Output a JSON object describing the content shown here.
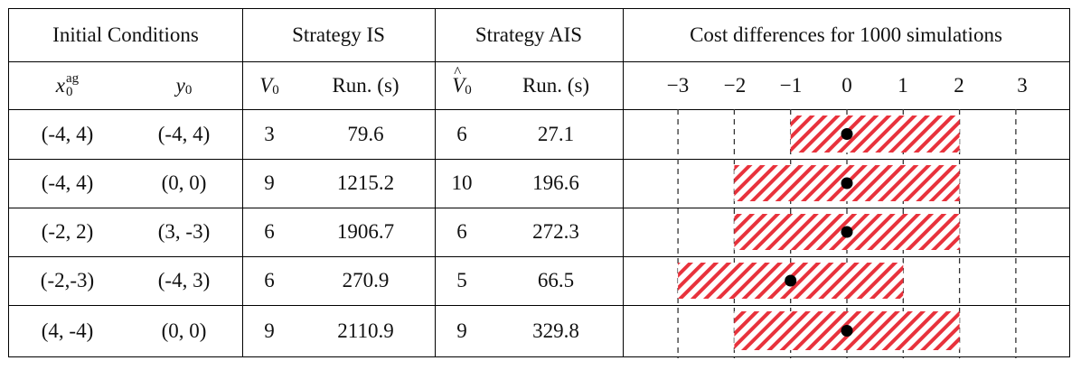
{
  "headers": {
    "group1": "Initial Conditions",
    "group2": "Strategy IS",
    "group3": "Strategy AIS",
    "group4": "Cost differences for 1000 simulations",
    "col_x": "x",
    "col_x_sub": "0",
    "col_x_sup": "ag",
    "col_y": "y",
    "col_y_sub": "0",
    "col_v": "V",
    "col_v_sub": "0",
    "col_run1": "Run. (s)",
    "col_vhat": "V",
    "col_vhat_sub": "0",
    "col_run2": "Run. (s)"
  },
  "axis_ticks": [
    "−3",
    "−2",
    "−1",
    "0",
    "1",
    "2",
    "3"
  ],
  "rows": [
    {
      "x0": "(-4, 4)",
      "y0": "(-4, 4)",
      "v0": "3",
      "run_is": "79.6",
      "vhat0": "6",
      "run_ais": "27.1"
    },
    {
      "x0": "(-4, 4)",
      "y0": "(0,  0)",
      "v0": "9",
      "run_is": "1215.2",
      "vhat0": "10",
      "run_ais": "196.6"
    },
    {
      "x0": "(-2, 2)",
      "y0": "(3, -3)",
      "v0": "6",
      "run_is": "1906.7",
      "vhat0": "6",
      "run_ais": "272.3"
    },
    {
      "x0": "(-2,-3)",
      "y0": "(-4, 3)",
      "v0": "6",
      "run_is": "270.9",
      "vhat0": "5",
      "run_ais": "66.5"
    },
    {
      "x0": "(4, -4)",
      "y0": "(0,  0)",
      "v0": "9",
      "run_is": "2110.9",
      "vhat0": "9",
      "run_ais": "329.8"
    }
  ],
  "chart_data": {
    "type": "bar",
    "xlim": [
      -3,
      3
    ],
    "ticks": [
      -3,
      -2,
      -1,
      0,
      1,
      2,
      3
    ],
    "gridlines": "dashed vertical at each integer tick",
    "bar_style": "red diagonal hatch",
    "marker": "black dot",
    "ranges": [
      {
        "min": -1,
        "max": 2,
        "marker": 0
      },
      {
        "min": -2,
        "max": 2,
        "marker": 0
      },
      {
        "min": -2,
        "max": 2,
        "marker": 0
      },
      {
        "min": -3,
        "max": 1,
        "marker": -1
      },
      {
        "min": -2,
        "max": 2,
        "marker": 0
      }
    ],
    "colors": {
      "hatch": "#e8323c",
      "marker": "#000000",
      "grid": "#333333"
    }
  }
}
